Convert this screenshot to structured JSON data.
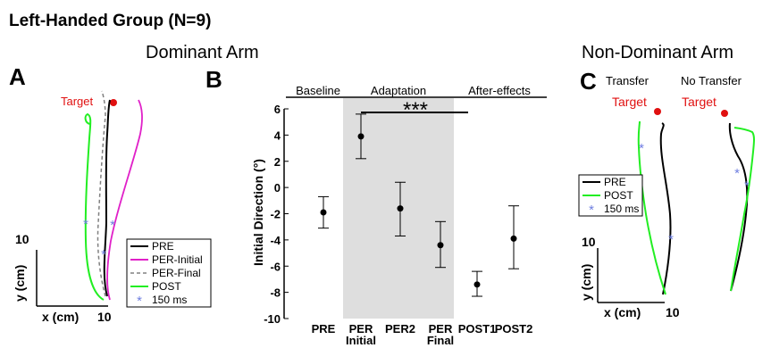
{
  "figure": {
    "title": "Left-Handed Group (N=9)",
    "dominant_title": "Dominant Arm",
    "nondominant_title": "Non-Dominant Arm"
  },
  "panel_a": {
    "letter": "A",
    "target_label": "Target",
    "xlabel": "x (cm)",
    "ylabel": "y (cm)",
    "scale_value_x": "10",
    "scale_value_y": "10",
    "legend": [
      "PRE",
      "PER-Initial",
      "PER-Final",
      "POST",
      "150 ms"
    ]
  },
  "panel_c": {
    "letter": "C",
    "transfer_label": "Transfer",
    "no_transfer_label": "No Transfer",
    "target_label": "Target",
    "xlabel": "x (cm)",
    "ylabel": "y (cm)",
    "scale_value_x": "10",
    "scale_value_y": "10",
    "legend": [
      "PRE",
      "POST",
      "150 ms"
    ]
  },
  "colors": {
    "pre": "#000000",
    "per_initial": "#e020c8",
    "per_final": "#808080",
    "post": "#22ee22",
    "marker": "#6f7fe0",
    "target": "#e01010",
    "shade": "#dedede"
  },
  "chart_data": {
    "type": "scatter",
    "panel_letter": "B",
    "ylabel": "Initial Direction (°)",
    "ylim": [
      -10,
      6
    ],
    "yticks": [
      6,
      4,
      2,
      0,
      -2,
      -4,
      -6,
      -8,
      -10
    ],
    "categories": [
      "PRE",
      "PER Initial",
      "PER2",
      "PER Final",
      "POST1",
      "POST2"
    ],
    "values": [
      -1.9,
      3.9,
      -1.6,
      -4.4,
      -7.4,
      -3.9
    ],
    "error_low": [
      -3.1,
      2.2,
      -3.7,
      -6.1,
      -8.3,
      -6.2
    ],
    "error_high": [
      -0.7,
      5.6,
      0.4,
      -2.6,
      -6.4,
      -1.4
    ],
    "phases": [
      "Baseline",
      "Adaptation",
      "After-effects"
    ],
    "significance": "***",
    "grid": false
  }
}
